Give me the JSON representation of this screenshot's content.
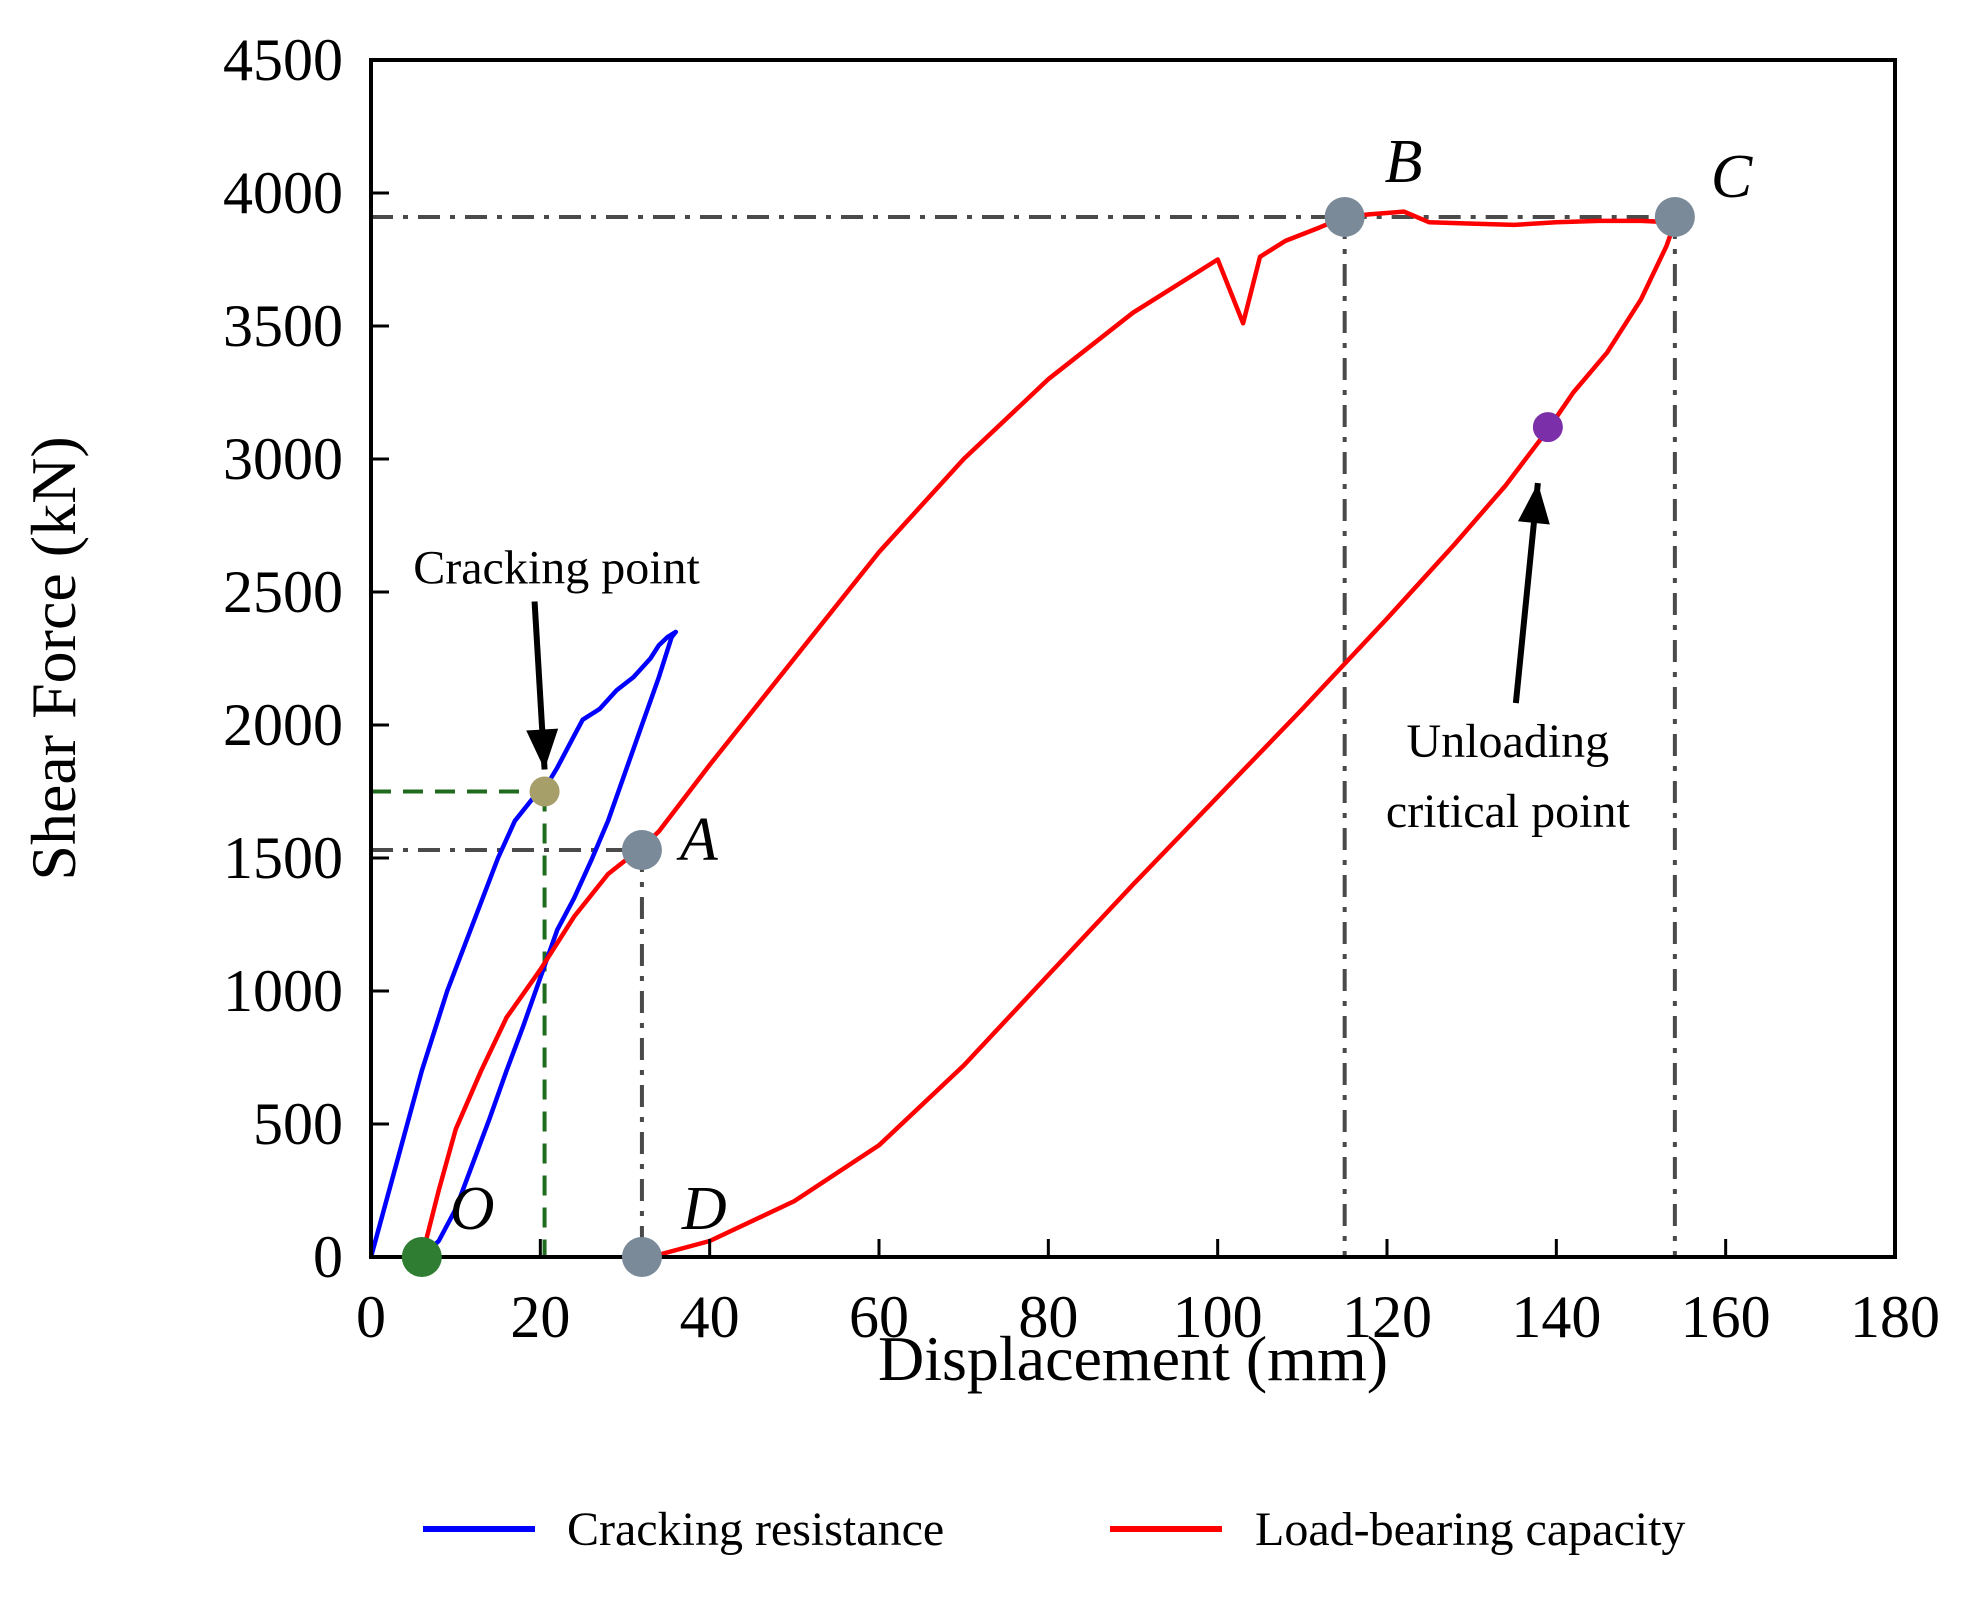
{
  "chart_data": {
    "type": "line",
    "title": "",
    "xlabel": "Displacement (mm)",
    "ylabel": "Shear Force (kN)",
    "xlim": [
      0,
      180
    ],
    "ylim": [
      0,
      4500
    ],
    "xticks": [
      "0",
      "20",
      "40",
      "60",
      "80",
      "100",
      "120",
      "140",
      "160",
      "180"
    ],
    "yticks": [
      "0",
      "500",
      "1000",
      "1500",
      "2000",
      "2500",
      "3000",
      "3500",
      "4000",
      "4500"
    ],
    "grid": false,
    "legend_position": "bottom",
    "series": [
      {
        "name": "Cracking resistance",
        "color": "#0000ff",
        "x": [
          0,
          3,
          6,
          9,
          12,
          15,
          17,
          19,
          20.5,
          22,
          24,
          25,
          27,
          29,
          31,
          33,
          34,
          35,
          36,
          35.5,
          34,
          32,
          30,
          28,
          26,
          24,
          22,
          20,
          18,
          16,
          14,
          12,
          10,
          8,
          6
        ],
        "y": [
          0,
          350,
          700,
          1000,
          1250,
          1500,
          1640,
          1720,
          1760,
          1840,
          1960,
          2020,
          2060,
          2130,
          2180,
          2250,
          2300,
          2330,
          2350,
          2330,
          2180,
          2000,
          1820,
          1640,
          1490,
          1350,
          1230,
          1050,
          870,
          700,
          520,
          350,
          180,
          60,
          0
        ]
      },
      {
        "name": "Load-bearing capacity",
        "color": "#ff0000",
        "x": [
          6,
          8,
          10,
          13,
          16,
          20,
          24,
          28,
          32,
          34,
          40,
          50,
          60,
          70,
          80,
          90,
          100,
          103,
          105,
          108,
          112,
          115,
          118,
          122,
          125,
          130,
          135,
          140,
          145,
          150,
          154,
          153,
          150,
          146,
          142,
          139,
          134,
          128,
          120,
          110,
          100,
          90,
          80,
          70,
          60,
          50,
          40,
          33
        ],
        "y": [
          0,
          250,
          480,
          700,
          900,
          1080,
          1280,
          1440,
          1540,
          1600,
          1850,
          2250,
          2650,
          3000,
          3300,
          3550,
          3750,
          3510,
          3760,
          3820,
          3870,
          3910,
          3920,
          3930,
          3890,
          3885,
          3880,
          3890,
          3895,
          3895,
          3890,
          3800,
          3600,
          3400,
          3250,
          3110,
          2900,
          2680,
          2400,
          2060,
          1730,
          1400,
          1060,
          720,
          420,
          210,
          60,
          0
        ]
      }
    ],
    "key_points": [
      {
        "label": "O",
        "x": 6,
        "y": 0,
        "color": "#2e7d32"
      },
      {
        "label": "A",
        "x": 32,
        "y": 1530,
        "color": "#7a8a99"
      },
      {
        "label": "B",
        "x": 115,
        "y": 3910,
        "color": "#7a8a99"
      },
      {
        "label": "C",
        "x": 154,
        "y": 3910,
        "color": "#7a8a99"
      },
      {
        "label": "D",
        "x": 32,
        "y": 0,
        "color": "#7a8a99"
      }
    ],
    "cracking_point": {
      "x": 20.5,
      "y": 1750,
      "color": "#a69f6a"
    },
    "unloading_critical_point": {
      "x": 139,
      "y": 3120,
      "color": "#7b2fa8"
    },
    "annotations": {
      "cracking": "Cracking point",
      "unloading_line1": "Unloading",
      "unloading_line2": "critical point"
    }
  }
}
